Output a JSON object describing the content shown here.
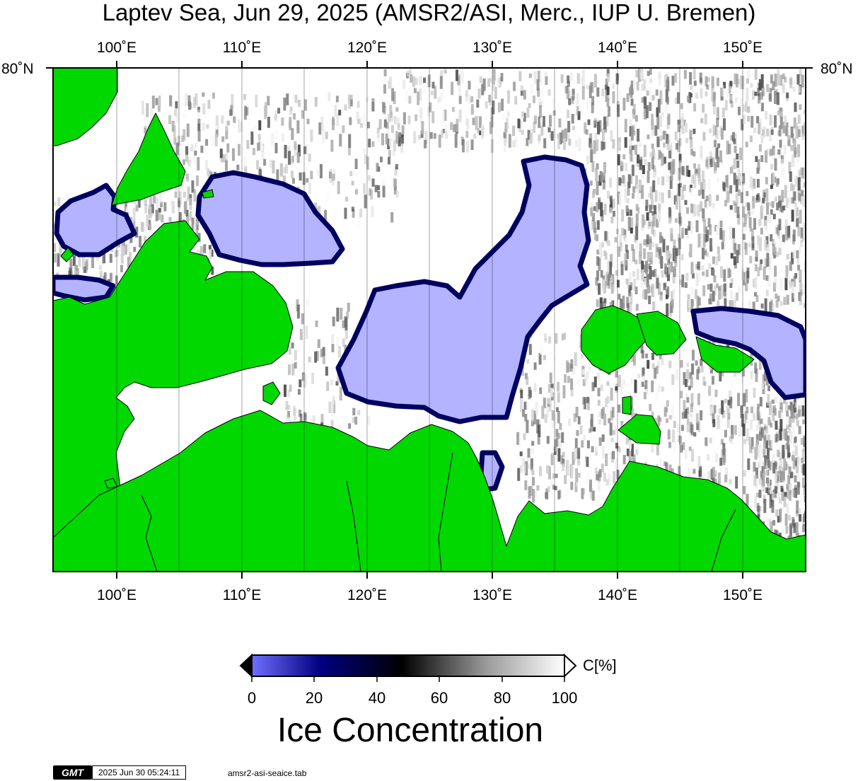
{
  "title": "Laptev Sea, Jun 29, 2025 (AMSR2/ASI, Merc., IUP U. Bremen)",
  "map": {
    "lon_labels": [
      "100˚E",
      "110˚E",
      "120˚E",
      "130˚E",
      "140˚E",
      "150˚E"
    ],
    "lat_label_left": "80˚N",
    "lat_label_right": "80˚N",
    "colors": {
      "land": "#00d800",
      "no_ice": "#ffffff",
      "low_concentration": "#b3b3ff",
      "ice_edge": "#000060"
    }
  },
  "colorbar": {
    "title": "Ice Concentration",
    "unit": "C[%]",
    "ticks": [
      "0",
      "20",
      "40",
      "60",
      "80",
      "100"
    ],
    "stops": [
      {
        "pos": 0.0,
        "color": "#6f6fff"
      },
      {
        "pos": 0.22,
        "color": "#000080"
      },
      {
        "pos": 0.48,
        "color": "#000000"
      },
      {
        "pos": 0.75,
        "color": "#9a9a9a"
      },
      {
        "pos": 1.0,
        "color": "#ffffff"
      }
    ]
  },
  "footer": {
    "logo": "GMT",
    "timestamp": "2025 Jun 30 05:24:11",
    "file": "amsr2-asi-seaice.tab"
  }
}
